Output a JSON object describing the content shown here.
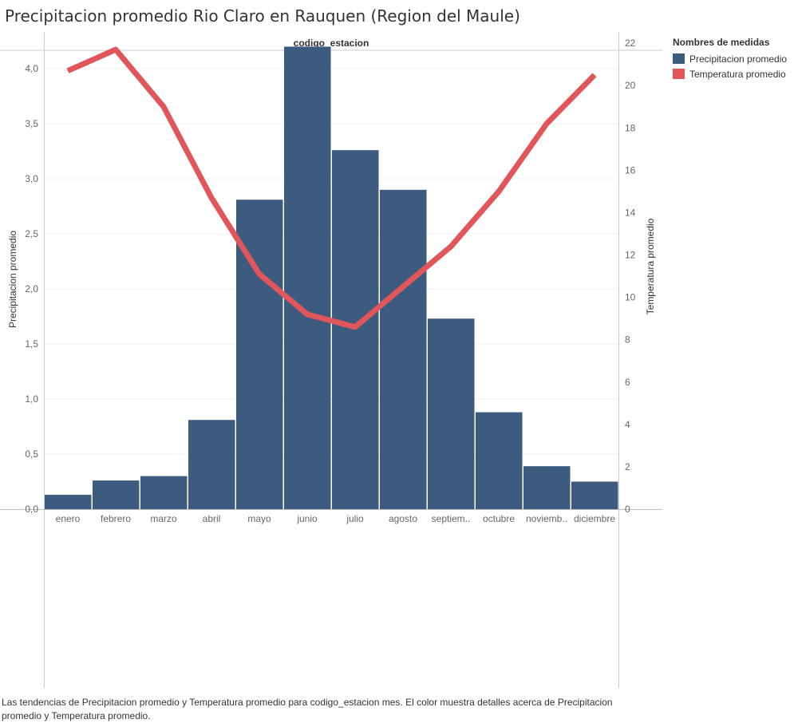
{
  "title": "Precipitacion promedio Rio Claro en Rauquen (Region del Maule)",
  "caption": "Las tendencias de Precipitacion promedio y Temperatura promedio para codigo_estacion mes.  El color muestra detalles acerca de Precipitacion promedio y Temperatura promedio.",
  "legend": {
    "title": "Nombres de medidas",
    "items": [
      {
        "label": "Precipitacion promedio",
        "color": "#3d5b7e"
      },
      {
        "label": "Temperatura promedio",
        "color": "#e0565b"
      }
    ]
  },
  "chart_data": {
    "type": "bar",
    "header": "codigo_estacion",
    "categories": [
      "enero",
      "febrero",
      "marzo",
      "abril",
      "mayo",
      "junio",
      "julio",
      "agosto",
      "septiem..",
      "octubre",
      "noviemb..",
      "diciembre"
    ],
    "series": [
      {
        "name": "Precipitacion promedio",
        "type": "bar",
        "axis": "left",
        "color": "#3d5b7e",
        "values": [
          0.13,
          0.26,
          0.3,
          0.81,
          2.81,
          4.2,
          3.26,
          2.9,
          1.73,
          0.88,
          0.39,
          0.25
        ]
      },
      {
        "name": "Temperatura promedio",
        "type": "line",
        "axis": "right",
        "color": "#e0565b",
        "values": [
          20.7,
          21.7,
          19.0,
          14.7,
          11.1,
          9.2,
          8.6,
          10.5,
          12.4,
          15.0,
          18.2,
          20.5
        ]
      }
    ],
    "ylabel_left": "Precipitacion promedio",
    "ylabel_right": "Temperatura promedio",
    "ylim_left": [
      0,
      4.167
    ],
    "ylim_right": [
      0,
      21.667
    ],
    "yticks_left": [
      "0,0",
      "0,5",
      "1,0",
      "1,5",
      "2,0",
      "2,5",
      "3,0",
      "3,5",
      "4,0"
    ],
    "yticks_right": [
      "0",
      "2",
      "4",
      "6",
      "8",
      "10",
      "12",
      "14",
      "16",
      "18",
      "20",
      "22"
    ],
    "ytick_values_left": [
      0,
      0.5,
      1.0,
      1.5,
      2.0,
      2.5,
      3.0,
      3.5,
      4.0
    ],
    "ytick_values_right": [
      0,
      2,
      4,
      6,
      8,
      10,
      12,
      14,
      16,
      18,
      20,
      22
    ],
    "grid": true,
    "legend_position": "top-right"
  }
}
